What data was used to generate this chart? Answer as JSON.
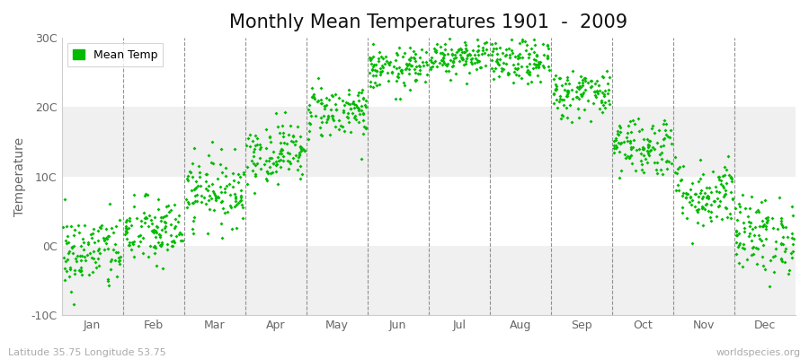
{
  "title": "Monthly Mean Temperatures 1901  -  2009",
  "ylabel": "Temperature",
  "subtitle": "Latitude 35.75 Longitude 53.75",
  "watermark": "worldspecies.org",
  "months": [
    "Jan",
    "Feb",
    "Mar",
    "Apr",
    "May",
    "Jun",
    "Jul",
    "Aug",
    "Sep",
    "Oct",
    "Nov",
    "Dec"
  ],
  "month_means": [
    -1.0,
    2.0,
    8.0,
    13.5,
    19.5,
    25.5,
    27.5,
    26.5,
    22.0,
    14.5,
    7.5,
    1.5
  ],
  "month_stds": [
    2.8,
    2.5,
    2.5,
    2.2,
    2.0,
    1.5,
    1.4,
    1.6,
    1.8,
    2.2,
    2.5,
    2.8
  ],
  "ylim": [
    -10,
    30
  ],
  "yticks": [
    -10,
    0,
    10,
    20,
    30
  ],
  "ytick_labels": [
    "-10C",
    "0C",
    "10C",
    "20C",
    "30C"
  ],
  "n_years": 109,
  "dot_color": "#00BB00",
  "dot_size": 4,
  "bg_color": "#ffffff",
  "plot_bg_color": "#f0f0f0",
  "band_color_light": "#ffffff",
  "grid_color": "#888888",
  "title_fontsize": 15,
  "axis_label_fontsize": 10,
  "tick_fontsize": 9,
  "legend_fontsize": 9,
  "seed": 42
}
